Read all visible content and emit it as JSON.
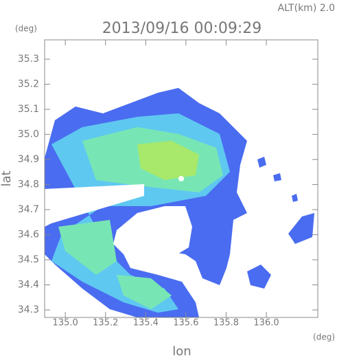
{
  "chart_data": {
    "type": "radar-image",
    "title": "2013/09/16 00:09:29",
    "subtitle": "ALT(km) 2.0",
    "y_unit": "(deg)",
    "x_unit": "(deg)",
    "xlabel": "lon",
    "ylabel": "lat",
    "xlim": [
      134.897,
      136.256
    ],
    "ylim": [
      34.27,
      35.377
    ],
    "xticks": [
      {
        "value": 135.0,
        "label": "135.0"
      },
      135.2,
      135.4,
      135.6,
      135.8,
      {
        "value": 136.0,
        "label": "136.0"
      }
    ],
    "yticks": [
      34.3,
      34.4,
      34.5,
      34.6,
      34.7,
      34.8,
      34.9,
      {
        "value": 35.0,
        "label": "35.0"
      },
      35.1,
      35.2,
      35.3
    ]
  }
}
